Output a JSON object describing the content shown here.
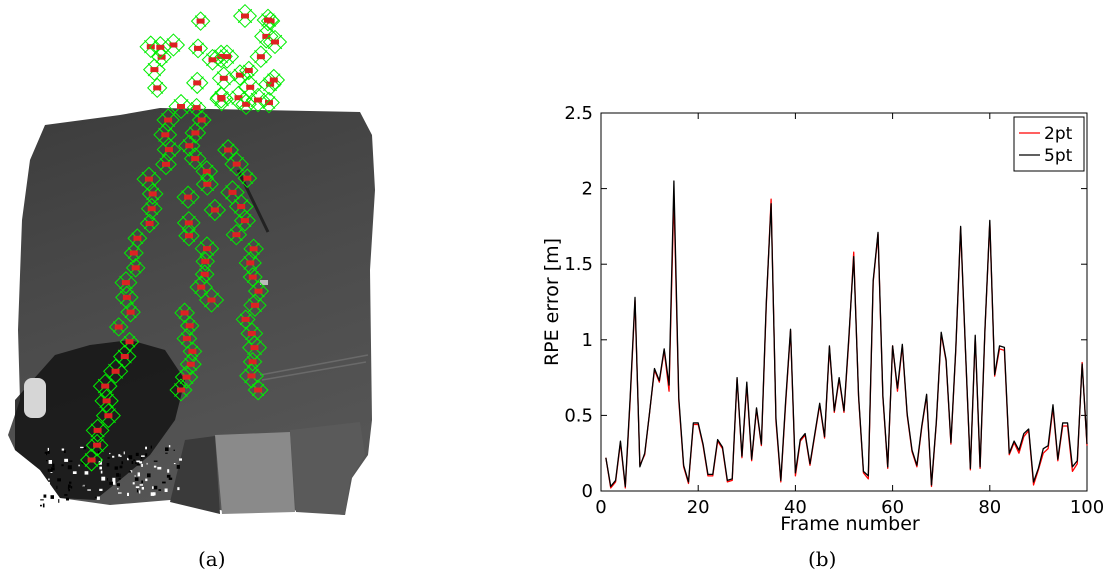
{
  "captions": {
    "a": "(a)",
    "b": "(b)"
  },
  "colors": {
    "series_2pt": "#ff0000",
    "series_5pt": "#000000",
    "camera_marker": "#00ee00",
    "camera_center": "#dd2222"
  },
  "icons": {
    "panel_a": "point-cloud-map-with-camera-poses"
  },
  "chart_data": {
    "type": "line",
    "xlabel": "Frame number",
    "ylabel": "RPE error [m]",
    "xlim": [
      0,
      100
    ],
    "ylim": [
      0,
      2.5
    ],
    "xticks": [
      0,
      20,
      40,
      60,
      80,
      100
    ],
    "yticks": [
      0,
      0.5,
      1,
      1.5,
      2,
      2.5
    ],
    "ytick_labels": [
      "0",
      "0.5",
      "1",
      "1.5",
      "2",
      "2.5"
    ],
    "grid": false,
    "legend_position": "top-right",
    "x": [
      1,
      2,
      3,
      4,
      5,
      6,
      7,
      8,
      9,
      10,
      11,
      12,
      13,
      14,
      15,
      16,
      17,
      18,
      19,
      20,
      21,
      22,
      23,
      24,
      25,
      26,
      27,
      28,
      29,
      30,
      31,
      32,
      33,
      34,
      35,
      36,
      37,
      38,
      39,
      40,
      41,
      42,
      43,
      44,
      45,
      46,
      47,
      48,
      49,
      50,
      51,
      52,
      53,
      54,
      55,
      56,
      57,
      58,
      59,
      60,
      61,
      62,
      63,
      64,
      65,
      66,
      67,
      68,
      69,
      70,
      71,
      72,
      73,
      74,
      75,
      76,
      77,
      78,
      79,
      80,
      81,
      82,
      83,
      84,
      85,
      86,
      87,
      88,
      89,
      90,
      91,
      92,
      93,
      94,
      95,
      96,
      97,
      98,
      99,
      100
    ],
    "series": [
      {
        "name": "2pt",
        "values": [
          0.22,
          0.02,
          0.06,
          0.32,
          0.02,
          0.6,
          1.26,
          0.17,
          0.24,
          0.52,
          0.8,
          0.72,
          0.93,
          0.66,
          1.95,
          0.6,
          0.16,
          0.05,
          0.44,
          0.44,
          0.3,
          0.1,
          0.1,
          0.33,
          0.28,
          0.06,
          0.07,
          0.74,
          0.22,
          0.7,
          0.2,
          0.54,
          0.3,
          1.22,
          1.93,
          0.46,
          0.06,
          0.58,
          1.06,
          0.1,
          0.33,
          0.37,
          0.17,
          0.37,
          0.57,
          0.35,
          0.95,
          0.52,
          0.74,
          0.52,
          1.0,
          1.58,
          0.62,
          0.12,
          0.08,
          1.38,
          1.7,
          0.62,
          0.15,
          0.96,
          0.66,
          0.96,
          0.5,
          0.26,
          0.16,
          0.42,
          0.63,
          0.03,
          0.45,
          1.04,
          0.86,
          0.31,
          0.93,
          1.74,
          0.92,
          0.14,
          1.02,
          0.15,
          1.06,
          1.78,
          0.76,
          0.94,
          0.93,
          0.24,
          0.32,
          0.25,
          0.36,
          0.4,
          0.04,
          0.14,
          0.25,
          0.28,
          0.55,
          0.2,
          0.43,
          0.43,
          0.13,
          0.18,
          0.85,
          0.3
        ]
      },
      {
        "name": "5pt",
        "values": [
          0.22,
          0.03,
          0.07,
          0.33,
          0.03,
          0.62,
          1.28,
          0.16,
          0.25,
          0.52,
          0.81,
          0.73,
          0.94,
          0.7,
          2.05,
          0.62,
          0.17,
          0.06,
          0.45,
          0.45,
          0.31,
          0.11,
          0.11,
          0.34,
          0.29,
          0.07,
          0.08,
          0.75,
          0.23,
          0.72,
          0.21,
          0.55,
          0.31,
          1.24,
          1.9,
          0.48,
          0.07,
          0.6,
          1.07,
          0.12,
          0.34,
          0.38,
          0.18,
          0.38,
          0.58,
          0.36,
          0.96,
          0.53,
          0.75,
          0.53,
          1.02,
          1.55,
          0.63,
          0.13,
          0.1,
          1.39,
          1.71,
          0.63,
          0.16,
          0.96,
          0.68,
          0.97,
          0.51,
          0.27,
          0.17,
          0.43,
          0.64,
          0.04,
          0.46,
          1.05,
          0.87,
          0.32,
          0.94,
          1.75,
          0.93,
          0.15,
          1.03,
          0.16,
          1.07,
          1.79,
          0.77,
          0.96,
          0.95,
          0.25,
          0.33,
          0.27,
          0.38,
          0.41,
          0.06,
          0.15,
          0.28,
          0.3,
          0.57,
          0.21,
          0.45,
          0.45,
          0.16,
          0.2,
          0.84,
          0.31
        ]
      }
    ]
  }
}
